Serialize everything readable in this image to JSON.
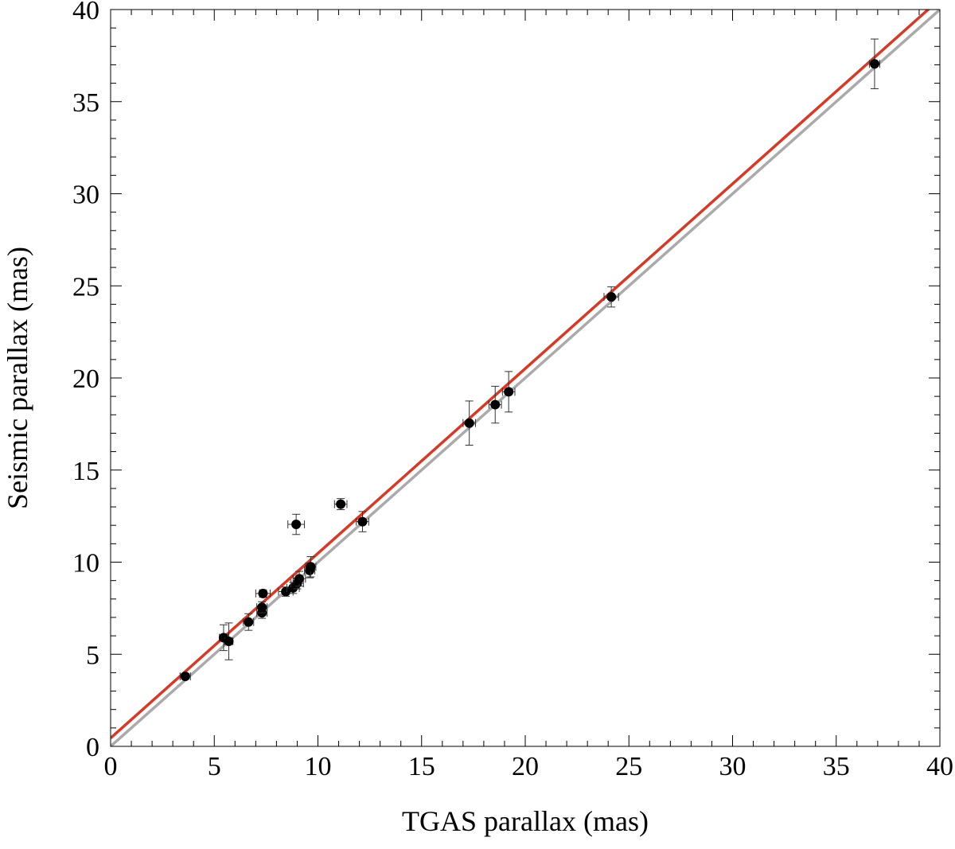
{
  "chart_data": {
    "type": "scatter",
    "xlabel": "TGAS parallax (mas)",
    "ylabel": "Seismic parallax (mas)",
    "xlim": [
      0,
      40
    ],
    "ylim": [
      0,
      40
    ],
    "x_ticks": [
      "0",
      "5",
      "10",
      "15",
      "20",
      "25",
      "30",
      "35",
      "40"
    ],
    "y_ticks": [
      "0",
      "5",
      "10",
      "15",
      "20",
      "25",
      "30",
      "35",
      "40"
    ],
    "x_tick_values": [
      0,
      5,
      10,
      15,
      20,
      25,
      30,
      35,
      40
    ],
    "y_tick_values": [
      0,
      5,
      10,
      15,
      20,
      25,
      30,
      35,
      40
    ],
    "grid": false,
    "points": [
      {
        "x": 3.6,
        "y": 3.8,
        "xerr": 0.25,
        "yerr": 0.15
      },
      {
        "x": 5.45,
        "y": 5.9,
        "xerr": 0.2,
        "yerr": 0.7
      },
      {
        "x": 5.7,
        "y": 5.7,
        "xerr": 0.2,
        "yerr": 1.0
      },
      {
        "x": 6.65,
        "y": 6.75,
        "xerr": 0.25,
        "yerr": 0.45
      },
      {
        "x": 7.3,
        "y": 7.25,
        "xerr": 0.25,
        "yerr": 0.3
      },
      {
        "x": 7.3,
        "y": 7.55,
        "xerr": 0.25,
        "yerr": 0.3
      },
      {
        "x": 7.35,
        "y": 8.3,
        "xerr": 0.35,
        "yerr": 0.2
      },
      {
        "x": 8.45,
        "y": 8.4,
        "xerr": 0.35,
        "yerr": 0.25
      },
      {
        "x": 8.8,
        "y": 8.6,
        "xerr": 0.3,
        "yerr": 0.3
      },
      {
        "x": 9.0,
        "y": 8.85,
        "xerr": 0.3,
        "yerr": 0.3
      },
      {
        "x": 9.1,
        "y": 9.1,
        "xerr": 0.3,
        "yerr": 0.4
      },
      {
        "x": 9.6,
        "y": 9.55,
        "xerr": 0.25,
        "yerr": 0.4
      },
      {
        "x": 9.65,
        "y": 9.75,
        "xerr": 0.25,
        "yerr": 0.55
      },
      {
        "x": 8.95,
        "y": 12.05,
        "xerr": 0.4,
        "yerr": 0.55
      },
      {
        "x": 11.1,
        "y": 13.15,
        "xerr": 0.3,
        "yerr": 0.3
      },
      {
        "x": 12.15,
        "y": 12.2,
        "xerr": 0.3,
        "yerr": 0.55
      },
      {
        "x": 17.3,
        "y": 17.55,
        "xerr": 0.3,
        "yerr": 1.2
      },
      {
        "x": 18.55,
        "y": 18.55,
        "xerr": 0.3,
        "yerr": 1.0
      },
      {
        "x": 19.2,
        "y": 19.25,
        "xerr": 0.3,
        "yerr": 1.1
      },
      {
        "x": 24.15,
        "y": 24.4,
        "xerr": 0.35,
        "yerr": 0.55
      },
      {
        "x": 36.85,
        "y": 37.05,
        "xerr": 0.25,
        "yerr": 1.35
      }
    ],
    "lines": [
      {
        "label": "",
        "color": "#aaaaaa",
        "slope": 1.0,
        "intercept": 0.0
      },
      {
        "label": "",
        "color": "#d63a26",
        "slope": 1.003,
        "intercept": 0.45
      }
    ]
  }
}
